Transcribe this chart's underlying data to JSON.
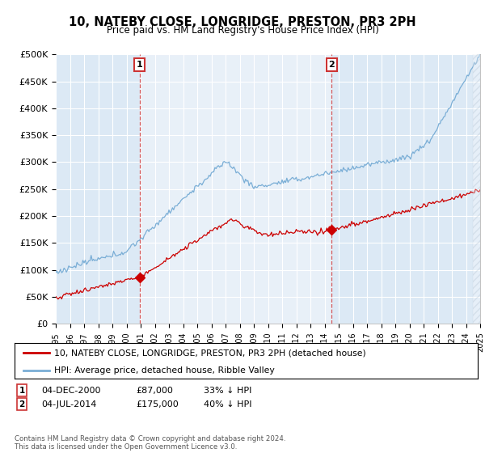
{
  "title": "10, NATEBY CLOSE, LONGRIDGE, PRESTON, PR3 2PH",
  "subtitle": "Price paid vs. HM Land Registry's House Price Index (HPI)",
  "bg_color": "#dce9f5",
  "hpi_color": "#7aaed6",
  "price_color": "#cc0000",
  "marker1_date_num": 2000.92,
  "marker2_date_num": 2014.5,
  "marker1_price": 87000,
  "marker2_price": 175000,
  "marker1_text": "04-DEC-2000",
  "marker1_val": "£87,000",
  "marker1_pct": "33% ↓ HPI",
  "marker2_text": "04-JUL-2014",
  "marker2_val": "£175,000",
  "marker2_pct": "40% ↓ HPI",
  "xmin": 1995,
  "xmax": 2025,
  "ymin": 0,
  "ymax": 500000,
  "yticks": [
    0,
    50000,
    100000,
    150000,
    200000,
    250000,
    300000,
    350000,
    400000,
    450000,
    500000
  ],
  "ytick_labels": [
    "£0",
    "£50K",
    "£100K",
    "£150K",
    "£200K",
    "£250K",
    "£300K",
    "£350K",
    "£400K",
    "£450K",
    "£500K"
  ],
  "legend_line1": "10, NATEBY CLOSE, LONGRIDGE, PRESTON, PR3 2PH (detached house)",
  "legend_line2": "HPI: Average price, detached house, Ribble Valley",
  "footer": "Contains HM Land Registry data © Crown copyright and database right 2024.\nThis data is licensed under the Open Government Licence v3.0.",
  "xticks": [
    1995,
    1996,
    1997,
    1998,
    1999,
    2000,
    2001,
    2002,
    2003,
    2004,
    2005,
    2006,
    2007,
    2008,
    2009,
    2010,
    2011,
    2012,
    2013,
    2014,
    2015,
    2016,
    2017,
    2018,
    2019,
    2020,
    2021,
    2022,
    2023,
    2024,
    2025
  ]
}
